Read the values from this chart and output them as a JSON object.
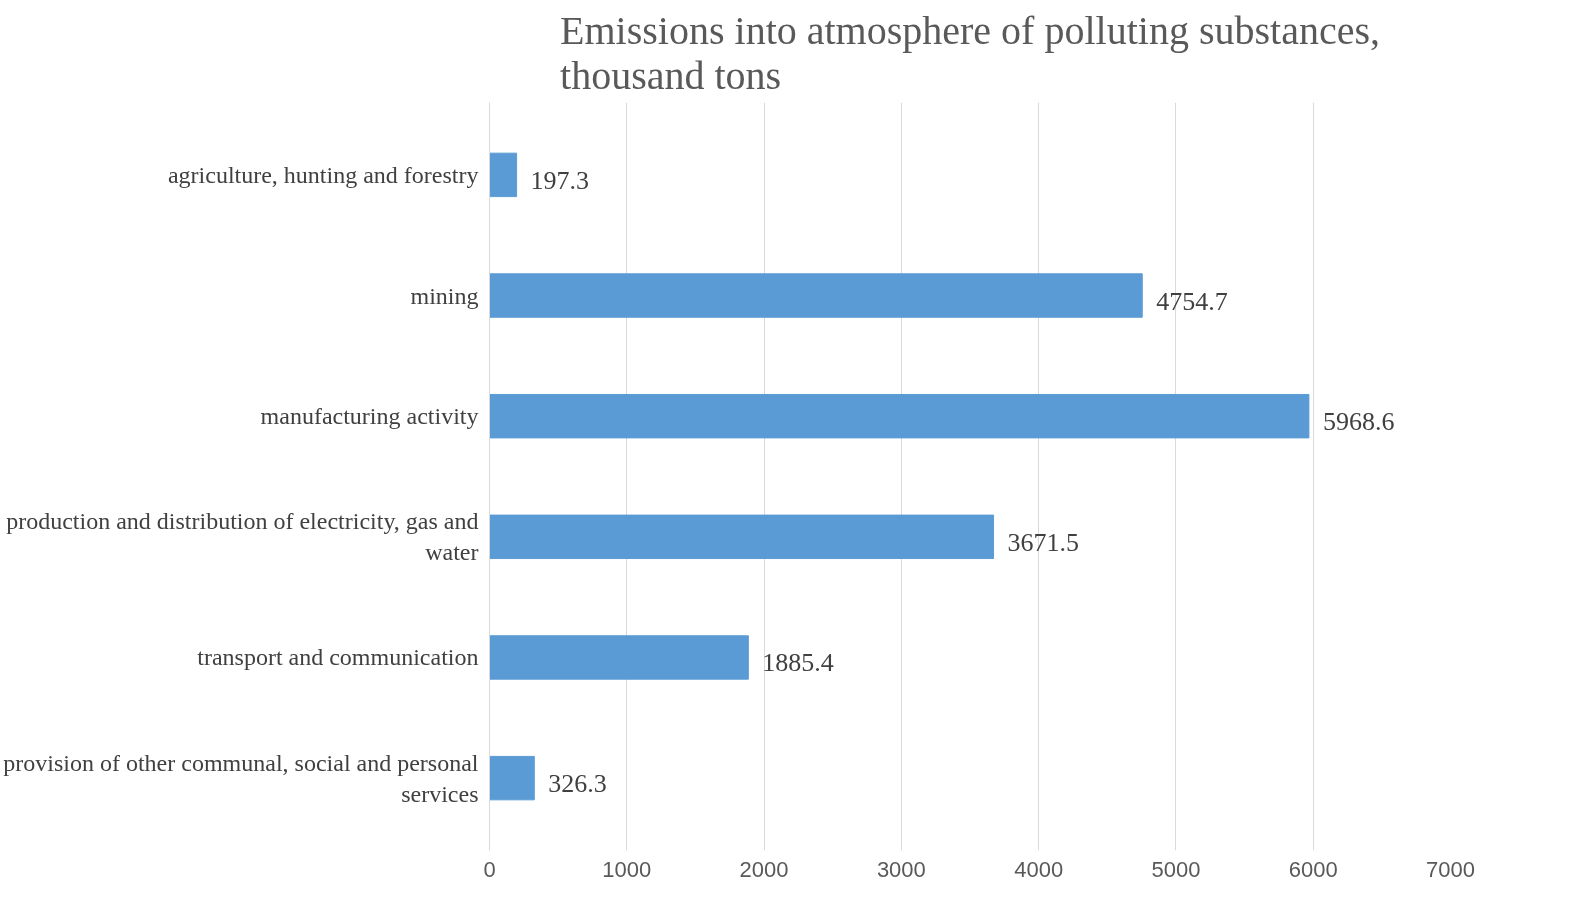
{
  "chart_data": {
    "type": "bar",
    "orientation": "horizontal",
    "title": "Emissions into atmosphere of polluting substances, thousand tons",
    "categories": [
      "agriculture, hunting and forestry",
      "mining",
      "manufacturing activity",
      "production and distribution of electricity, gas and water",
      "transport and communication",
      "provision of other communal, social and personal services"
    ],
    "values": [
      197.3,
      4754.7,
      5968.6,
      3671.5,
      1885.4,
      326.3
    ],
    "color": "#5b9bd5",
    "xlim": [
      0,
      7000
    ],
    "xticks": [
      0,
      1000,
      2000,
      3000,
      4000,
      5000,
      6000,
      7000
    ],
    "grid": "x",
    "data_labels": true
  }
}
